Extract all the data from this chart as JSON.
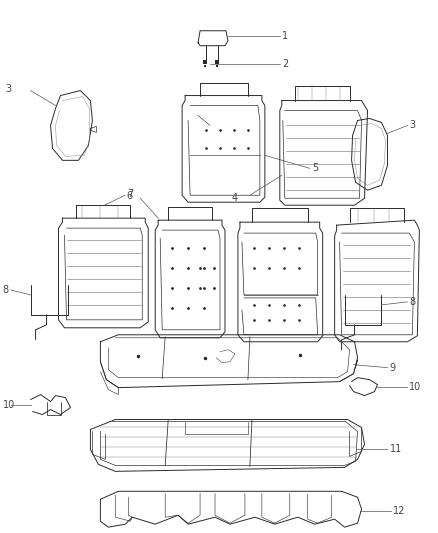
{
  "bg_color": "#ffffff",
  "lc": "#2a2a2a",
  "lc2": "#555555",
  "label_color": "#444444",
  "fig_width": 4.38,
  "fig_height": 5.33,
  "dpi": 100
}
